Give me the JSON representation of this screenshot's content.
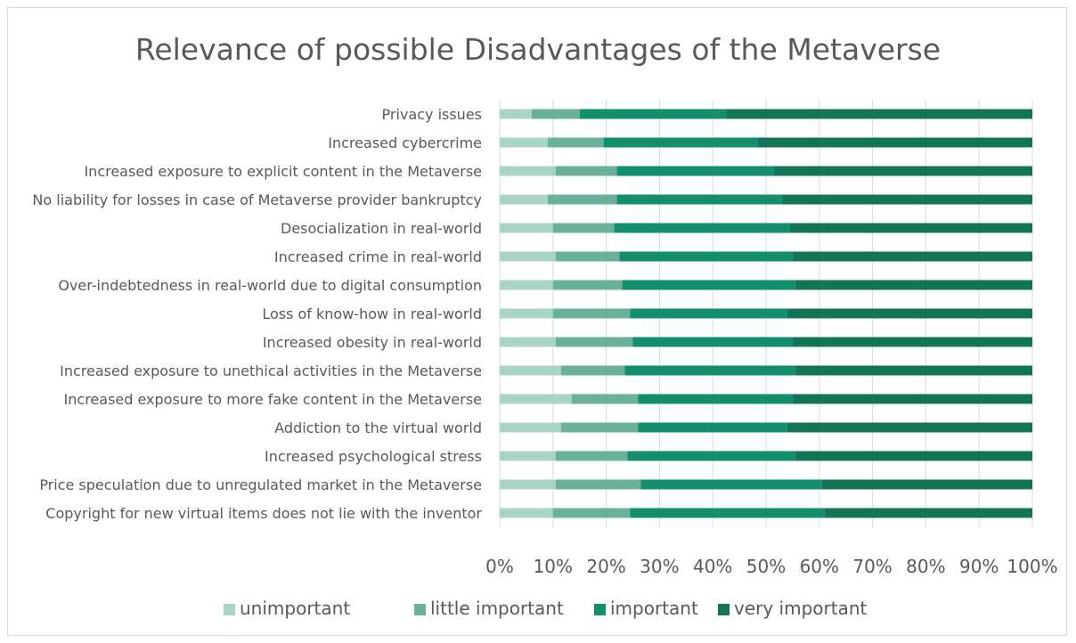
{
  "chart_data": {
    "type": "bar",
    "orientation": "horizontal",
    "stacked": "percent",
    "title": "Relevance of possible Disadvantages of the Metaverse",
    "xlabel": "",
    "ylabel": "",
    "xlim": [
      0,
      100
    ],
    "x_ticks": [
      "0%",
      "10%",
      "20%",
      "30%",
      "40%",
      "50%",
      "60%",
      "70%",
      "80%",
      "90%",
      "100%"
    ],
    "grid": "vertical",
    "legend_position": "bottom",
    "categories": [
      "Privacy issues",
      "Increased cybercrime",
      "Increased exposure to explicit content in the Metaverse",
      "No liability for losses in case of Metaverse provider bankruptcy",
      "Desocialization in real-world",
      "Increased crime in real-world",
      "Over-indebtedness in real-world due to digital consumption",
      "Loss of know-how in real-world",
      "Increased obesity in real-world",
      "Increased exposure to unethical activities in the Metaverse",
      "Increased exposure to more fake content in the Metaverse",
      "Addiction to the virtual world",
      "Increased psychological stress",
      "Price speculation due to unregulated market in the Metaverse",
      "Copyright for new virtual items does not lie with the inventor"
    ],
    "series": [
      {
        "name": "unimportant",
        "color": "#a9d4c8",
        "values": [
          6,
          9,
          10.5,
          9,
          10,
          10.5,
          10,
          10,
          10.5,
          11.5,
          13.5,
          11.5,
          10.5,
          10.5,
          10
        ]
      },
      {
        "name": "little important",
        "color": "#69b19a",
        "values": [
          9,
          10.5,
          11.5,
          13,
          11.5,
          12,
          13,
          14.5,
          14.5,
          12,
          12.5,
          14.5,
          13.5,
          16,
          14.5
        ]
      },
      {
        "name": "important",
        "color": "#138e6f",
        "values": [
          27.5,
          29,
          29.5,
          31,
          33,
          32.5,
          32.5,
          29.5,
          30,
          32,
          29,
          28,
          31.5,
          34,
          36.5
        ]
      },
      {
        "name": "very important",
        "color": "#137458",
        "values": [
          57.5,
          51.5,
          48.5,
          47,
          45.5,
          45,
          44.5,
          46,
          45,
          44.5,
          45,
          46,
          44.5,
          39.5,
          39
        ]
      }
    ]
  }
}
